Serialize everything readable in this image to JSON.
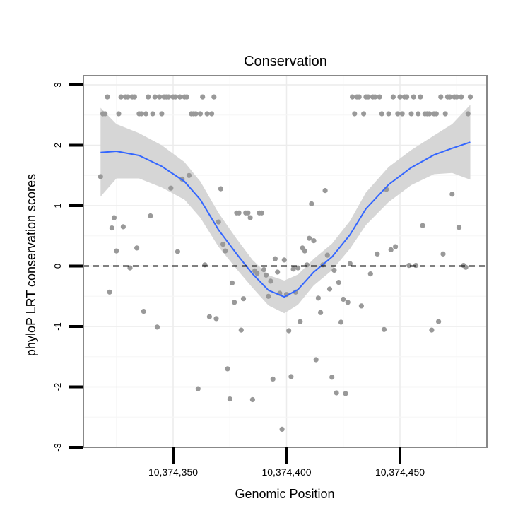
{
  "chart_data": {
    "type": "scatter",
    "title": "Conservation",
    "xlabel": "Genomic Position",
    "ylabel": "phyloP LRT conservation scores",
    "xlim": [
      10374310,
      10374490
    ],
    "ylim": [
      -3,
      3
    ],
    "x_ticks": [
      10374350,
      10374400,
      10374450
    ],
    "x_tick_labels": [
      "10,374,350",
      "10,374,400",
      "10,374,450"
    ],
    "y_ticks": [
      -3,
      -2,
      -1,
      0,
      1,
      2,
      3
    ],
    "y_tick_labels": [
      "-3",
      "-2",
      "-1",
      "0",
      "1",
      "2",
      "3"
    ],
    "grid": true,
    "reference_line": {
      "y": 0,
      "style": "dashed"
    },
    "colors": {
      "points": "#999999",
      "smooth_line": "#3366ff",
      "ribbon": "#d6d6d6",
      "panel_border": "#888888"
    },
    "points": [
      [
        10374318,
        1.48
      ],
      [
        10374319,
        2.52
      ],
      [
        10374320,
        2.52
      ],
      [
        10374321,
        2.8
      ],
      [
        10374322,
        -0.43
      ],
      [
        10374323,
        0.63
      ],
      [
        10374324,
        0.8
      ],
      [
        10374325,
        0.25
      ],
      [
        10374326,
        2.52
      ],
      [
        10374327,
        2.8
      ],
      [
        10374328,
        0.65
      ],
      [
        10374329,
        2.8
      ],
      [
        10374330,
        2.8
      ],
      [
        10374331,
        -0.03
      ],
      [
        10374332,
        2.8
      ],
      [
        10374333,
        2.8
      ],
      [
        10374334,
        0.3
      ],
      [
        10374335,
        2.52
      ],
      [
        10374336,
        2.52
      ],
      [
        10374337,
        -0.75
      ],
      [
        10374338,
        2.52
      ],
      [
        10374339,
        2.8
      ],
      [
        10374340,
        0.83
      ],
      [
        10374341,
        2.52
      ],
      [
        10374342,
        2.8
      ],
      [
        10374343,
        -1.01
      ],
      [
        10374344,
        2.8
      ],
      [
        10374345,
        2.52
      ],
      [
        10374346,
        2.8
      ],
      [
        10374347,
        2.8
      ],
      [
        10374348,
        2.8
      ],
      [
        10374349,
        1.29
      ],
      [
        10374350,
        2.8
      ],
      [
        10374351,
        2.8
      ],
      [
        10374352,
        0.24
      ],
      [
        10374353,
        2.8
      ],
      [
        10374354,
        1.44
      ],
      [
        10374355,
        2.8
      ],
      [
        10374356,
        2.8
      ],
      [
        10374357,
        1.5
      ],
      [
        10374358,
        2.52
      ],
      [
        10374359,
        2.52
      ],
      [
        10374360,
        2.52
      ],
      [
        10374361,
        -2.03
      ],
      [
        10374362,
        2.52
      ],
      [
        10374363,
        2.8
      ],
      [
        10374364,
        0.02
      ],
      [
        10374365,
        2.52
      ],
      [
        10374366,
        -0.84
      ],
      [
        10374367,
        2.52
      ],
      [
        10374368,
        2.8
      ],
      [
        10374369,
        -0.87
      ],
      [
        10374370,
        0.73
      ],
      [
        10374371,
        1.28
      ],
      [
        10374372,
        0.36
      ],
      [
        10374373,
        0.25
      ],
      [
        10374374,
        -1.7
      ],
      [
        10374375,
        -2.2
      ],
      [
        10374376,
        -0.28
      ],
      [
        10374377,
        -0.6
      ],
      [
        10374378,
        0.88
      ],
      [
        10374379,
        0.88
      ],
      [
        10374380,
        -1.06
      ],
      [
        10374381,
        -0.54
      ],
      [
        10374382,
        0.88
      ],
      [
        10374383,
        0.88
      ],
      [
        10374384,
        0.8
      ],
      [
        10374385,
        -2.21
      ],
      [
        10374386,
        -0.08
      ],
      [
        10374387,
        -0.12
      ],
      [
        10374388,
        0.88
      ],
      [
        10374389,
        0.88
      ],
      [
        10374390,
        -0.06
      ],
      [
        10374391,
        -0.15
      ],
      [
        10374392,
        -0.5
      ],
      [
        10374393,
        -0.25
      ],
      [
        10374394,
        -1.87
      ],
      [
        10374395,
        0.12
      ],
      [
        10374396,
        -0.1
      ],
      [
        10374397,
        -0.45
      ],
      [
        10374398,
        -2.7
      ],
      [
        10374399,
        0.1
      ],
      [
        10374400,
        -0.47
      ],
      [
        10374401,
        -1.07
      ],
      [
        10374402,
        -1.83
      ],
      [
        10374403,
        -0.05
      ],
      [
        10374404,
        -0.43
      ],
      [
        10374405,
        -0.03
      ],
      [
        10374406,
        -0.92
      ],
      [
        10374407,
        0.3
      ],
      [
        10374408,
        0.25
      ],
      [
        10374409,
        0.02
      ],
      [
        10374410,
        0.46
      ],
      [
        10374411,
        1.03
      ],
      [
        10374412,
        0.42
      ],
      [
        10374413,
        -1.55
      ],
      [
        10374414,
        -0.53
      ],
      [
        10374415,
        -0.77
      ],
      [
        10374416,
        0.02
      ],
      [
        10374417,
        1.25
      ],
      [
        10374418,
        0.18
      ],
      [
        10374419,
        -0.38
      ],
      [
        10374420,
        -1.84
      ],
      [
        10374421,
        -0.07
      ],
      [
        10374422,
        -2.1
      ],
      [
        10374423,
        -0.27
      ],
      [
        10374424,
        -0.93
      ],
      [
        10374425,
        -0.55
      ],
      [
        10374426,
        -2.11
      ],
      [
        10374427,
        -0.6
      ],
      [
        10374428,
        0.04
      ],
      [
        10374429,
        2.8
      ],
      [
        10374430,
        2.52
      ],
      [
        10374431,
        2.8
      ],
      [
        10374432,
        2.8
      ],
      [
        10374433,
        -0.66
      ],
      [
        10374434,
        2.52
      ],
      [
        10374435,
        2.8
      ],
      [
        10374436,
        2.8
      ],
      [
        10374437,
        -0.13
      ],
      [
        10374438,
        2.8
      ],
      [
        10374439,
        2.8
      ],
      [
        10374440,
        0.2
      ],
      [
        10374441,
        2.8
      ],
      [
        10374442,
        2.52
      ],
      [
        10374443,
        -1.05
      ],
      [
        10374444,
        1.27
      ],
      [
        10374445,
        2.52
      ],
      [
        10374446,
        0.27
      ],
      [
        10374447,
        2.8
      ],
      [
        10374448,
        0.32
      ],
      [
        10374449,
        2.52
      ],
      [
        10374450,
        2.8
      ],
      [
        10374451,
        2.52
      ],
      [
        10374452,
        2.8
      ],
      [
        10374453,
        2.8
      ],
      [
        10374454,
        0.01
      ],
      [
        10374455,
        2.52
      ],
      [
        10374456,
        2.8
      ],
      [
        10374457,
        0.01
      ],
      [
        10374458,
        2.52
      ],
      [
        10374459,
        2.8
      ],
      [
        10374460,
        0.67
      ],
      [
        10374461,
        2.52
      ],
      [
        10374462,
        2.52
      ],
      [
        10374463,
        2.52
      ],
      [
        10374464,
        -1.06
      ],
      [
        10374465,
        2.52
      ],
      [
        10374466,
        2.52
      ],
      [
        10374467,
        -0.92
      ],
      [
        10374468,
        2.8
      ],
      [
        10374469,
        0.2
      ],
      [
        10374470,
        2.52
      ],
      [
        10374471,
        2.8
      ],
      [
        10374472,
        2.8
      ],
      [
        10374473,
        1.19
      ],
      [
        10374474,
        2.8
      ],
      [
        10374475,
        2.8
      ],
      [
        10374476,
        0.64
      ],
      [
        10374477,
        2.8
      ],
      [
        10374478,
        0.01
      ],
      [
        10374479,
        -0.02
      ],
      [
        10374480,
        2.52
      ],
      [
        10374481,
        2.8
      ]
    ],
    "smooth": {
      "x": [
        10374318,
        10374325,
        10374335,
        10374345,
        10374355,
        10374362,
        10374370,
        10374378,
        10374385,
        10374392,
        10374399,
        10374405,
        10374412,
        10374420,
        10374428,
        10374435,
        10374445,
        10374455,
        10374465,
        10374473,
        10374481
      ],
      "y": [
        1.88,
        1.9,
        1.83,
        1.65,
        1.4,
        1.1,
        0.6,
        0.2,
        -0.13,
        -0.4,
        -0.51,
        -0.39,
        -0.1,
        0.15,
        0.52,
        0.95,
        1.35,
        1.63,
        1.84,
        1.95,
        2.05
      ],
      "ci_low": [
        1.15,
        1.45,
        1.45,
        1.3,
        1.1,
        0.8,
        0.32,
        -0.05,
        -0.36,
        -0.65,
        -0.78,
        -0.64,
        -0.32,
        -0.07,
        0.29,
        0.68,
        1.06,
        1.34,
        1.52,
        1.54,
        1.43
      ],
      "ci_high": [
        2.62,
        2.35,
        2.2,
        2.0,
        1.72,
        1.4,
        0.88,
        0.45,
        0.1,
        -0.15,
        -0.24,
        -0.14,
        0.12,
        0.37,
        0.75,
        1.22,
        1.64,
        1.92,
        2.16,
        2.35,
        2.67
      ]
    }
  }
}
